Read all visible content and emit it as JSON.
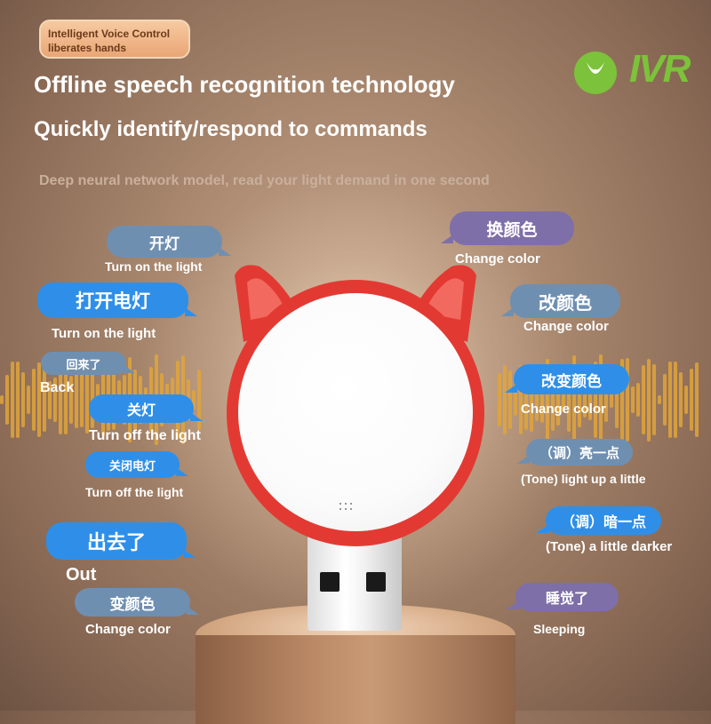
{
  "badge": "Intelligent Voice Control liberates hands",
  "logo_text": "IVR",
  "headline": "Offline speech recognition technology",
  "subheadline": "Quickly identify/respond to commands",
  "tagline": "Deep neural network model, read your light demand in one second",
  "colors": {
    "bubble_blue": "#2f8fe8",
    "bubble_slate": "#6f8fb1",
    "bubble_purple": "#7f6fa8",
    "lamp_red": "#e23a33"
  },
  "commands_left": [
    {
      "cn": "开灯",
      "en": "Turn on the light"
    },
    {
      "cn": "打开电灯",
      "en": "Turn on the light"
    },
    {
      "cn": "回来了",
      "en": "Back"
    },
    {
      "cn": "关灯",
      "en": "Turn off the light"
    },
    {
      "cn": "关闭电灯",
      "en": "Turn off the light"
    },
    {
      "cn": "出去了",
      "en": "Out"
    },
    {
      "cn": "变颜色",
      "en": "Change color"
    }
  ],
  "commands_right": [
    {
      "cn": "换颜色",
      "en": "Change color"
    },
    {
      "cn": "改颜色",
      "en": "Change color"
    },
    {
      "cn": "改变颜色",
      "en": "Change color"
    },
    {
      "cn": "（调）亮一点",
      "en": "(Tone) light up a little"
    },
    {
      "cn": "（调）暗一点",
      "en": "(Tone) a little darker"
    },
    {
      "cn": "睡觉了",
      "en": "Sleeping"
    }
  ]
}
